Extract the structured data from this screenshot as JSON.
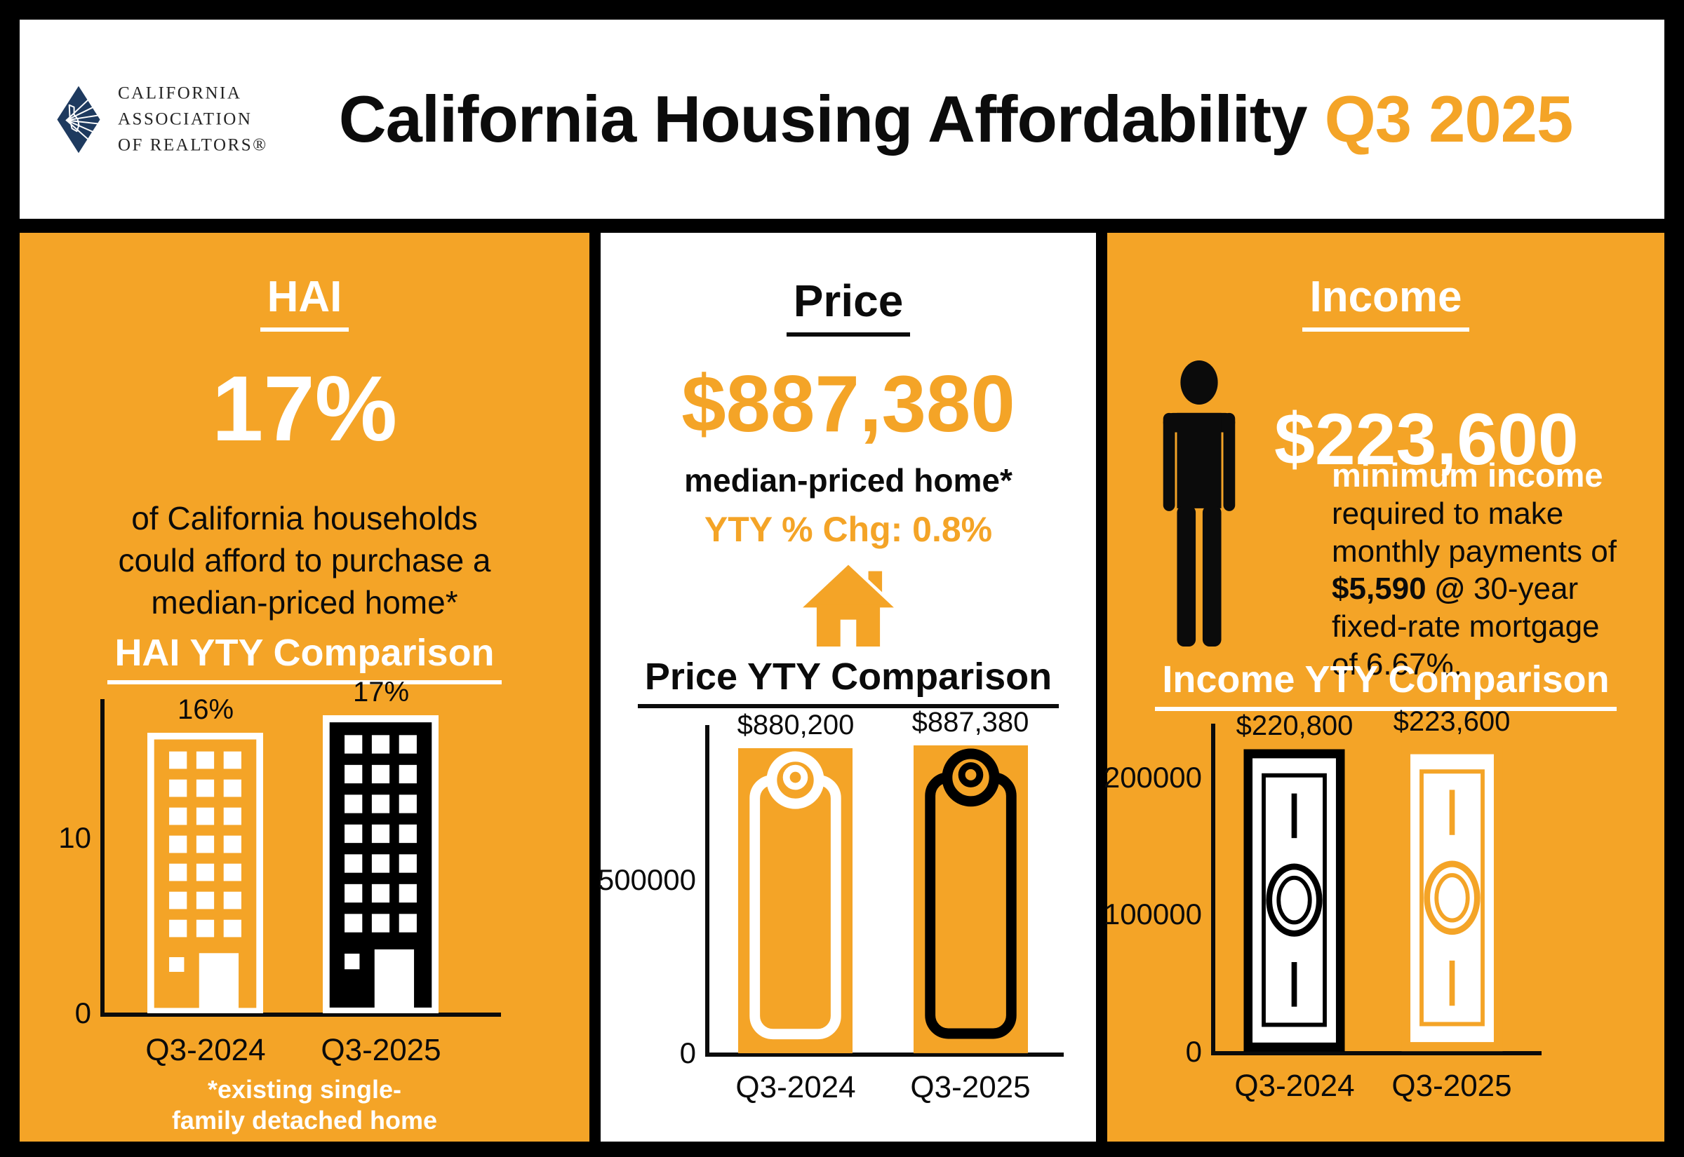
{
  "header": {
    "title": "California Housing Affordability",
    "quarter": "Q3 2025"
  },
  "logo": {
    "line1": "CALIFORNIA",
    "line2": "ASSOCIATION",
    "line3": "OF REALTORS®"
  },
  "colors": {
    "accent_orange": "#F4A427",
    "logo_navy": "#1E3A5F",
    "text_black": "#0B0B0B",
    "white": "#FFFFFF"
  },
  "hai_panel": {
    "heading": "HAI",
    "stat": "17%",
    "description": "of California households could afford to purchase a median-priced home*",
    "footnote_line1": "*existing single-",
    "footnote_line2": "family detached home"
  },
  "price_panel": {
    "heading": "Price",
    "stat": "$887,380",
    "stat_caption": "median-priced home*",
    "yty_change": "YTY % Chg: 0.8%"
  },
  "income_panel": {
    "heading": "Income",
    "stat": "$223,600",
    "stat_caption": "minimum income",
    "description_part1": "required to make monthly payments of ",
    "description_bold": "$5,590 @",
    "description_part2": " 30-year fixed-rate mortgage of 6.67%."
  },
  "chart_data": [
    {
      "id": "hai",
      "type": "bar",
      "title": "HAI YTY Comparison",
      "categories": [
        "Q3-2024",
        "Q3-2025"
      ],
      "values": [
        16,
        17
      ],
      "value_labels": [
        "16%",
        "17%"
      ],
      "xlabel": "",
      "ylabel": "",
      "yticks": [
        0,
        10
      ],
      "ylim": [
        0,
        17.6
      ],
      "grid": false,
      "legend": false,
      "bar_icon": "building",
      "bar_styles": [
        {
          "fill": "#F4A427",
          "outline": "#FFFFFF"
        },
        {
          "fill": "#000000",
          "outline": "#FFFFFF"
        }
      ]
    },
    {
      "id": "price",
      "type": "bar",
      "title": "Price YTY Comparison",
      "categories": [
        "Q3-2024",
        "Q3-2025"
      ],
      "values": [
        880200,
        887380
      ],
      "value_labels": [
        "$880,200",
        "$887,380"
      ],
      "xlabel": "",
      "ylabel": "",
      "yticks": [
        0,
        500000
      ],
      "ylim": [
        0,
        930000
      ],
      "grid": false,
      "legend": false,
      "bar_icon": "price-tag",
      "bar_styles": [
        {
          "fill": "#F4A427",
          "outline": "#FFFFFF"
        },
        {
          "fill": "#F4A427",
          "outline": "#000000"
        }
      ]
    },
    {
      "id": "income",
      "type": "bar",
      "title": "Income YTY Comparison",
      "categories": [
        "Q3-2024",
        "Q3-2025"
      ],
      "values": [
        220800,
        223600
      ],
      "value_labels": [
        "$220,800",
        "$223,600"
      ],
      "xlabel": "",
      "ylabel": "",
      "yticks": [
        0,
        100000,
        200000
      ],
      "ylim": [
        0,
        235000
      ],
      "grid": false,
      "legend": false,
      "bar_icon": "money-bill",
      "bar_styles": [
        {
          "fill": "#FFFFFF",
          "outline": "#000000"
        },
        {
          "fill": "#FFFFFF",
          "outline": "#F4A427"
        }
      ]
    }
  ]
}
